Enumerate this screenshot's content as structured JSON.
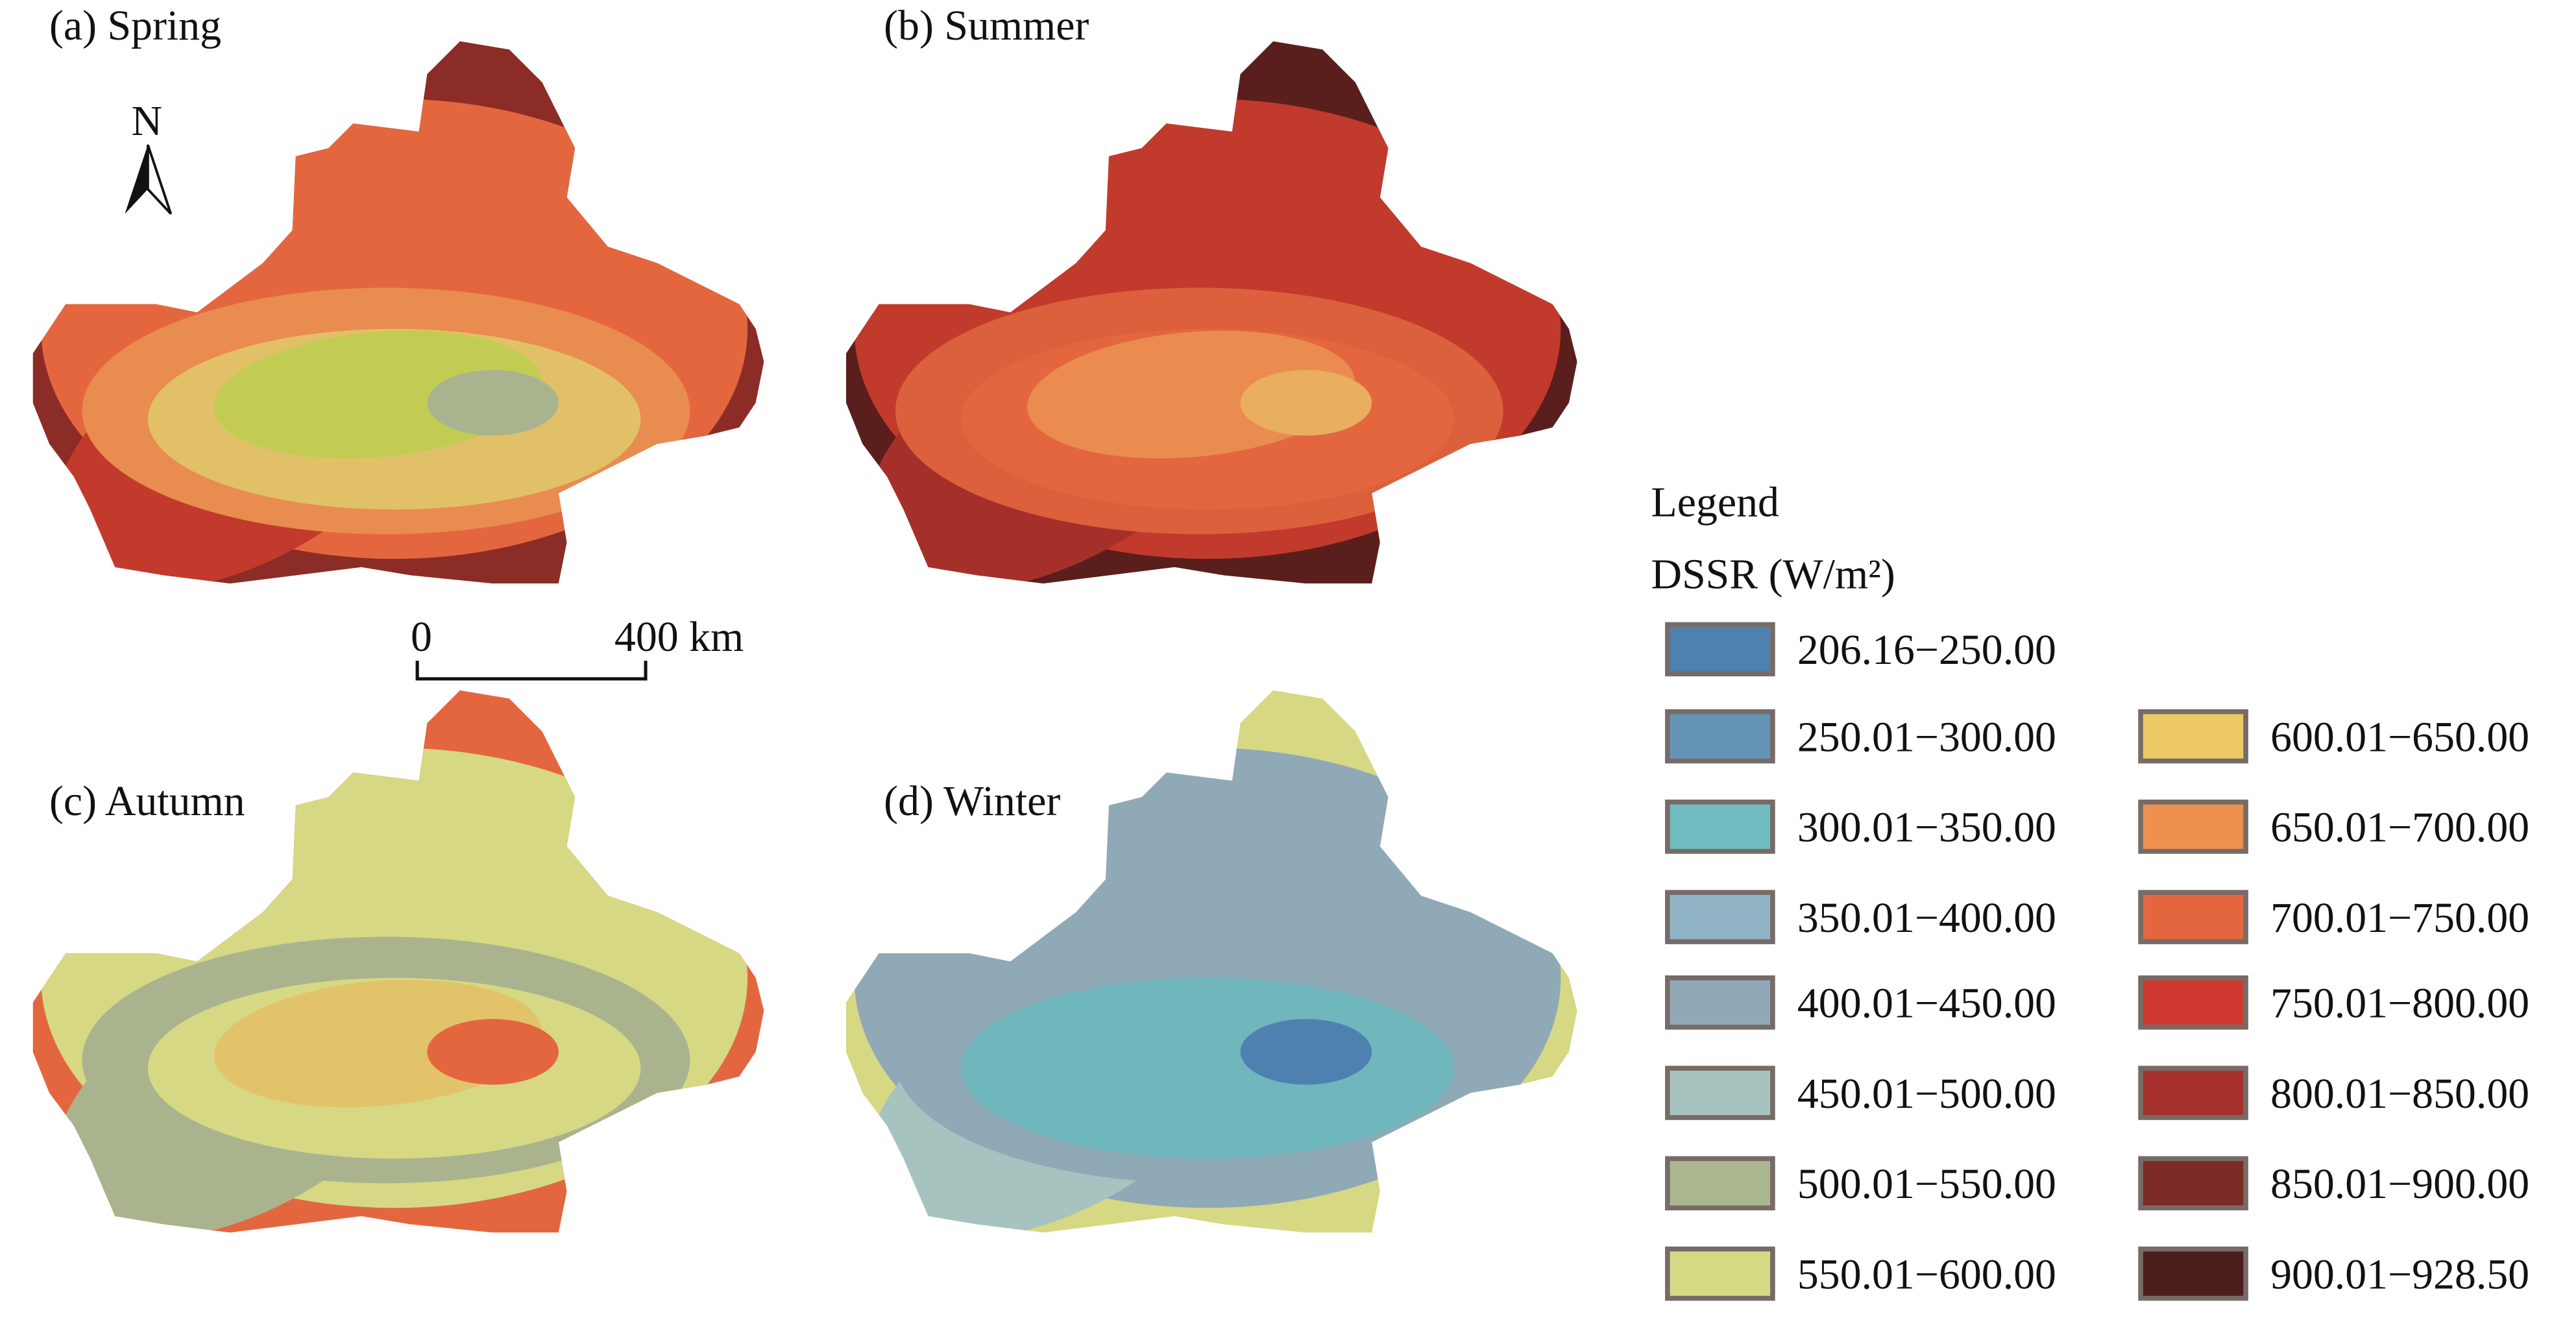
{
  "panels": [
    {
      "title": "(a) Spring",
      "base": "#e4663f",
      "layers": [
        "#c23a2c",
        "#e98c4f",
        "#e2c067",
        "#c2cc52",
        "#a9b48f"
      ],
      "edge": "#8c2c26"
    },
    {
      "title": "(b) Summer",
      "base": "#c23a2c",
      "layers": [
        "#a5302a",
        "#dd603c",
        "#e4663f",
        "#ea8c50",
        "#e9ae5f"
      ],
      "edge": "#5a1f1c"
    },
    {
      "title": "(c) Autumn",
      "base": "#d6d883",
      "layers": [
        "#a9b48f",
        "#a9b48f",
        "#d6d883",
        "#e3c36a",
        "#e4663f"
      ],
      "edge": "#e4663f"
    },
    {
      "title": "(d) Winter",
      "base": "#90a9b7",
      "layers": [
        "#a6c3bf",
        "#90a9b7",
        "#6fb6bd",
        "#6fb6bd",
        "#4f81b0"
      ],
      "edge": "#d6d883"
    }
  ],
  "north_arrow": {
    "label": "N"
  },
  "scale_bar": {
    "start": "0",
    "end": "400 km"
  },
  "legend": {
    "title": "Legend",
    "subtitle": "DSSR (W/m²)",
    "classes": [
      {
        "label": "206.16−250.00",
        "color": "#4e80b0"
      },
      {
        "label": "250.01−300.00",
        "color": "#6494b4"
      },
      {
        "label": "300.01−350.00",
        "color": "#6fbcc1"
      },
      {
        "label": "350.01−400.00",
        "color": "#90b3c6"
      },
      {
        "label": "400.01−450.00",
        "color": "#91a9b7"
      },
      {
        "label": "450.01−500.00",
        "color": "#a6c4bd"
      },
      {
        "label": "500.01−550.00",
        "color": "#aab78f"
      },
      {
        "label": "550.01−600.00",
        "color": "#d6d983"
      },
      {
        "label": "600.01−650.00",
        "color": "#edc966"
      },
      {
        "label": "650.01−700.00",
        "color": "#ee914f"
      },
      {
        "label": "700.01−750.00",
        "color": "#e4663f"
      },
      {
        "label": "750.01−800.00",
        "color": "#d1382f"
      },
      {
        "label": "800.01−850.00",
        "color": "#a6302b"
      },
      {
        "label": "850.01−900.00",
        "color": "#7d2b26"
      },
      {
        "label": "900.01−928.50",
        "color": "#4b1e1d"
      }
    ]
  }
}
